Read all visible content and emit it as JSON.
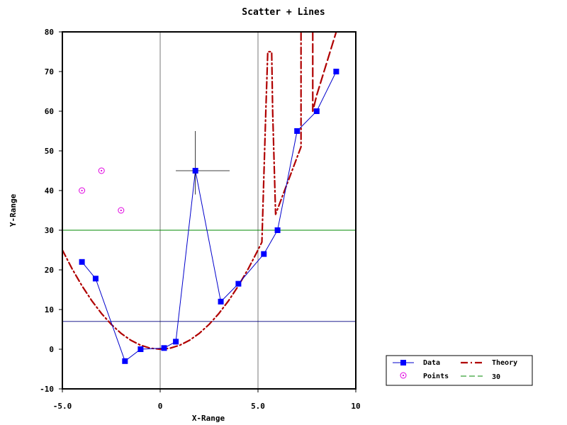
{
  "chart_data": {
    "type": "scatter",
    "title": "Scatter + Lines",
    "xlabel": "X-Range",
    "ylabel": "Y-Range",
    "xlim": [
      -5,
      10
    ],
    "ylim": [
      -10,
      80
    ],
    "x_ticks": [
      -5,
      0,
      5,
      10
    ],
    "x_tick_labels": [
      "-5.0",
      "0",
      "5.0",
      "10"
    ],
    "y_ticks": [
      -10,
      0,
      10,
      20,
      30,
      40,
      50,
      60,
      70,
      80
    ],
    "y_tick_labels": [
      "-10",
      "0",
      "10",
      "20",
      "30",
      "40",
      "50",
      "60",
      "70",
      "80"
    ],
    "grid": false,
    "legend_position": "bottom-right",
    "series": [
      {
        "name": "Data",
        "style": "line-markers",
        "marker": "square",
        "color": "#0000cc",
        "marker_color": "#0000ff",
        "points": [
          [
            -4.0,
            22.0
          ],
          [
            -3.3,
            17.8
          ],
          [
            -1.8,
            -3.0
          ],
          [
            -1.0,
            0.0
          ],
          [
            0.2,
            0.3
          ],
          [
            0.8,
            1.9
          ],
          [
            1.8,
            45.0
          ],
          [
            3.1,
            12.0
          ],
          [
            4.0,
            16.5
          ],
          [
            5.3,
            24.0
          ],
          [
            6.0,
            30.0
          ],
          [
            7.0,
            55.0
          ],
          [
            8.0,
            60.0
          ],
          [
            9.0,
            70.0
          ]
        ],
        "error_bar": {
          "x": 1.8,
          "y": 45.0,
          "x_minus": 1.0,
          "x_plus": 1.75,
          "y_minus": 6.0,
          "y_plus": 10.0
        }
      },
      {
        "name": "Points",
        "style": "markers",
        "marker": "circle-dot",
        "color": "#e000e0",
        "points": [
          [
            -4.0,
            40.0
          ],
          [
            -3.0,
            45.0
          ],
          [
            -2.0,
            35.0
          ]
        ]
      },
      {
        "name": "Theory",
        "style": "dash-dot",
        "color": "#b00000",
        "points": [
          [
            -5.0,
            25.0
          ],
          [
            -4.5,
            20.25
          ],
          [
            -4.0,
            16.0
          ],
          [
            -3.5,
            12.25
          ],
          [
            -3.0,
            9.0
          ],
          [
            -2.5,
            6.25
          ],
          [
            -2.0,
            4.0
          ],
          [
            -1.5,
            2.25
          ],
          [
            -1.0,
            1.0
          ],
          [
            -0.5,
            0.25
          ],
          [
            0.0,
            0.0
          ],
          [
            0.5,
            0.25
          ],
          [
            1.0,
            1.0
          ],
          [
            1.5,
            2.25
          ],
          [
            2.0,
            4.0
          ],
          [
            2.5,
            6.25
          ],
          [
            3.0,
            9.0
          ],
          [
            3.5,
            12.25
          ],
          [
            4.0,
            16.0
          ],
          [
            4.5,
            20.25
          ],
          [
            5.0,
            25.0
          ],
          [
            5.2,
            27.0
          ],
          [
            5.4,
            60.0
          ],
          [
            5.5,
            75.0
          ],
          [
            5.7,
            75.0
          ],
          [
            5.75,
            60.0
          ],
          [
            5.9,
            34.0
          ],
          [
            7.2,
            51.0
          ],
          [
            7.2,
            80.0
          ]
        ],
        "continuation": [
          [
            7.8,
            80.0
          ],
          [
            7.8,
            60.0
          ],
          [
            8.0,
            64.0
          ],
          [
            9.0,
            80.0
          ]
        ]
      },
      {
        "name": "30",
        "style": "dash",
        "color": "#008800",
        "y": 30
      }
    ],
    "reference_lines": {
      "vertical": [
        {
          "x": 0,
          "color": "#555555"
        },
        {
          "x": 5,
          "color": "#555555"
        }
      ],
      "horizontal": [
        {
          "y": 30,
          "color": "#008800"
        },
        {
          "y": 7,
          "color": "#000080"
        }
      ]
    }
  }
}
